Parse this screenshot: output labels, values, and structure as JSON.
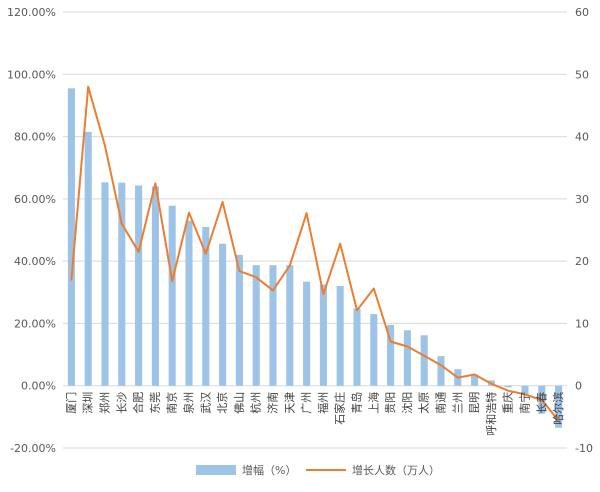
{
  "chart_data": {
    "type": "bar",
    "categories": [
      "厦门",
      "深圳",
      "郑州",
      "长沙",
      "合肥",
      "东莞",
      "南京",
      "泉州",
      "武汉",
      "北京",
      "佛山",
      "杭州",
      "济南",
      "天津",
      "广州",
      "福州",
      "石家庄",
      "青岛",
      "上海",
      "贵阳",
      "沈阳",
      "太原",
      "南通",
      "兰州",
      "昆明",
      "呼和浩特",
      "重庆",
      "南宁",
      "长春",
      "哈尔滨"
    ],
    "series": [
      {
        "name": "增幅（%）",
        "axis": "left",
        "render": "bar",
        "color": "#9dc3e6",
        "values": [
          95.5,
          81.5,
          65.3,
          65.2,
          64.3,
          64.0,
          57.8,
          53.0,
          51.0,
          45.6,
          42.0,
          38.7,
          38.7,
          38.7,
          33.4,
          32.5,
          32.0,
          24.8,
          23.0,
          19.5,
          17.8,
          16.2,
          9.5,
          5.3,
          3.6,
          1.7,
          -0.5,
          -3.0,
          -9.0,
          -13.5
        ]
      },
      {
        "name": "增长人数（万人）",
        "axis": "right",
        "render": "line",
        "color": "#ed7d31",
        "values": [
          17.0,
          48.0,
          38.5,
          26.0,
          21.5,
          32.5,
          16.8,
          27.8,
          21.2,
          29.5,
          18.4,
          17.4,
          15.3,
          19.3,
          27.7,
          14.7,
          22.8,
          12.1,
          15.6,
          7.1,
          6.3,
          4.8,
          3.3,
          1.3,
          1.8,
          0.3,
          -0.8,
          -1.4,
          -2.3,
          -5.6
        ]
      }
    ],
    "left_axis": {
      "min": -20,
      "max": 120,
      "step": 20,
      "ticks": [
        "-20.00%",
        "0.00%",
        "20.00%",
        "40.00%",
        "60.00%",
        "80.00%",
        "100.00%",
        "120.00%"
      ]
    },
    "right_axis": {
      "min": -10,
      "max": 60,
      "step": 10,
      "ticks": [
        "-10",
        "0",
        "10",
        "20",
        "30",
        "40",
        "50",
        "60"
      ]
    },
    "grid": true,
    "legend_position": "bottom",
    "title": "",
    "xlabel": "",
    "ylabel": ""
  }
}
